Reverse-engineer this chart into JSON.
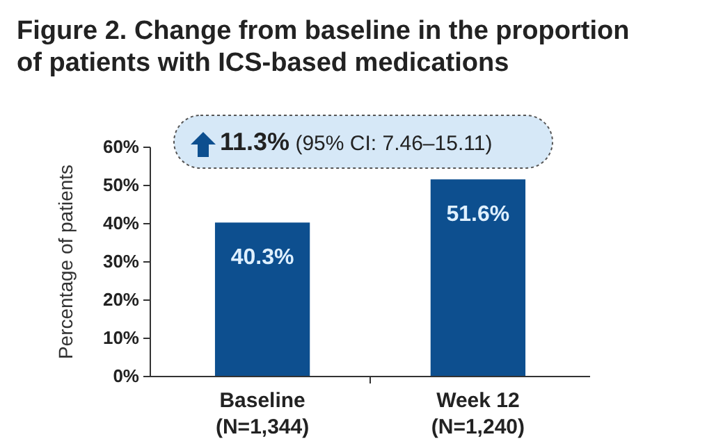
{
  "chart_data": {
    "type": "bar",
    "title": "Figure 2. Change from baseline in the proportion of patients with ICS-based medications",
    "ylabel": "Percentage of patients",
    "categories": [
      "Baseline\n(N=1,344)",
      "Week 12\n(N=1,240)"
    ],
    "values": [
      40.3,
      51.6
    ],
    "color": "#0d4f8f",
    "value_labels": [
      "40.3%",
      "51.6%"
    ],
    "ylim": [
      0,
      60
    ],
    "yticks": [
      {
        "value": 0,
        "label": "0%"
      },
      {
        "value": 10,
        "label": "10%"
      },
      {
        "value": 20,
        "label": "20%"
      },
      {
        "value": 30,
        "label": "30%"
      },
      {
        "value": 40,
        "label": "40%"
      },
      {
        "value": 50,
        "label": "50%"
      },
      {
        "value": 60,
        "label": "60%"
      }
    ],
    "annotations": [
      "11.3%",
      "(95% CI: 7.46–15.11)"
    ],
    "grid": false
  }
}
